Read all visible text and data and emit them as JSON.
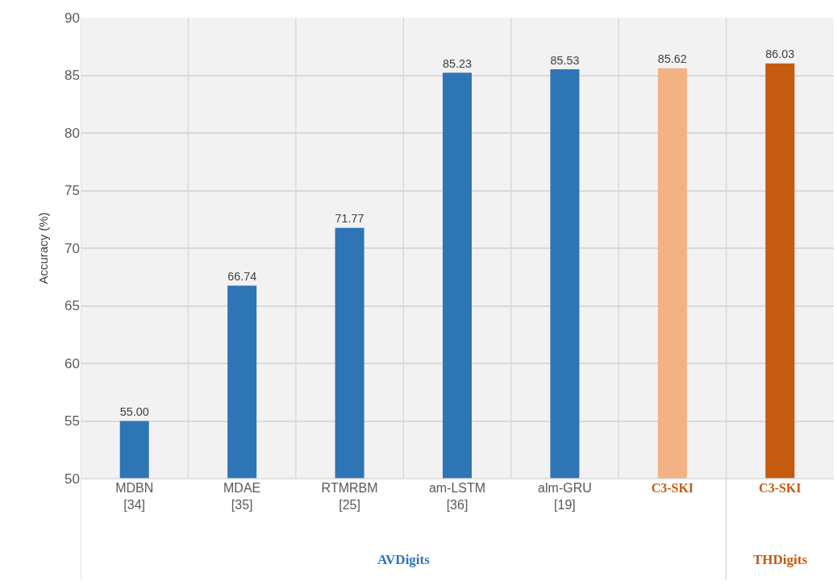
{
  "chart_data": {
    "type": "bar",
    "ylabel": "Accuracy (%)",
    "categories": [
      "MDBN\n[34]",
      "MDAE\n[35]",
      "RTMRBM\n[25]",
      "am-LSTM\n[36]",
      "alm-GRU\n[19]",
      "C3-SKI",
      "C3-SKI"
    ],
    "values": [
      55.0,
      66.74,
      71.77,
      85.23,
      85.53,
      85.62,
      86.03
    ],
    "value_labels": [
      "55.00",
      "66.74",
      "71.77",
      "85.23",
      "85.53",
      "85.62",
      "86.03"
    ],
    "colors": [
      "#2e75b6",
      "#2e75b6",
      "#2e75b6",
      "#2e75b6",
      "#2e75b6",
      "#f4b183",
      "#c55a11"
    ],
    "ylim": [
      50,
      90
    ],
    "yticks": [
      50,
      55,
      60,
      65,
      70,
      75,
      80,
      85,
      90
    ],
    "grid": true,
    "annotations": [
      "AVDigits",
      "THDigits"
    ]
  }
}
